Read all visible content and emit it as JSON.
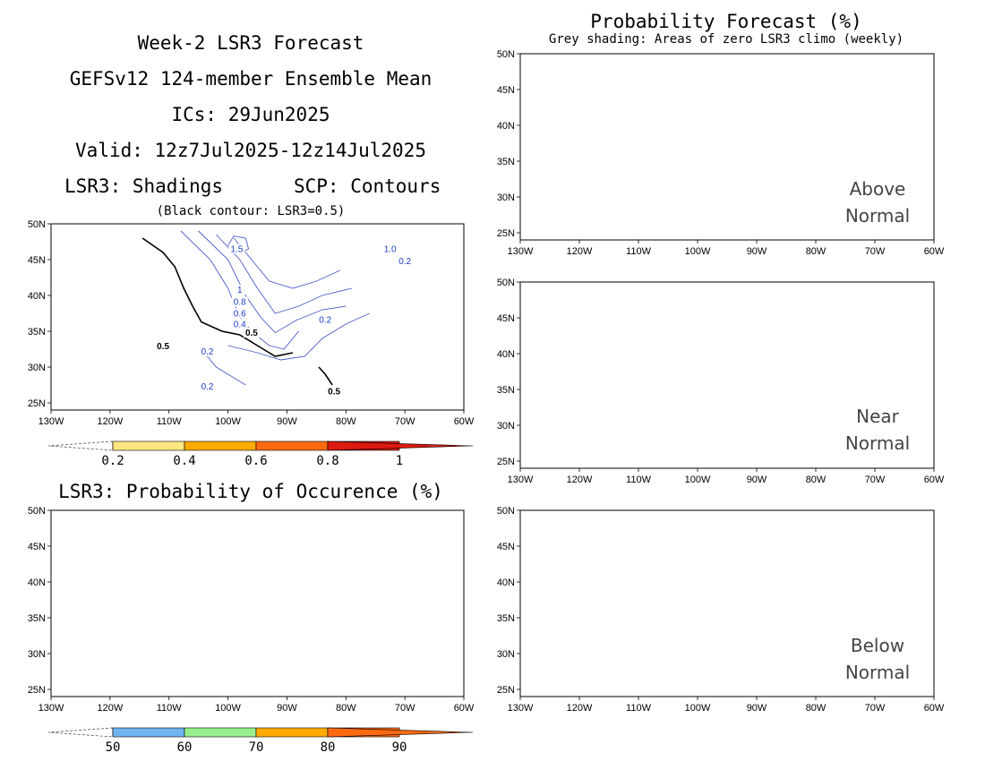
{
  "left": {
    "title_lines": [
      "Week-2 LSR3 Forecast",
      "GEFSv12 124-member Ensemble Mean",
      "ICs: 29Jun2025",
      "Valid: 12z7Jul2025-12z14Jul2025"
    ],
    "shading_label": "LSR3: Shadings",
    "contour_label": "SCP: Contours",
    "black_contour_note": "(Black contour: LSR3=0.5)",
    "occurrence_title": "LSR3: Probability of Occurence (%)",
    "colorbar1_ticks": [
      "0.2",
      "0.4",
      "0.6",
      "0.8",
      "1"
    ],
    "colorbar2_ticks": [
      "50",
      "60",
      "70",
      "80",
      "90"
    ],
    "contour_labels": [
      "1.5",
      "1",
      "0.8",
      "0.6",
      "0.4",
      "0.5",
      "0.2",
      "0.2",
      "0.2",
      "0.5",
      "0.5",
      "0.2",
      "1.0"
    ]
  },
  "right": {
    "title": "Probability Forecast (%)",
    "subtitle": "Grey shading: Areas of zero LSR3 climo (weekly)",
    "panels": [
      {
        "line1": "Above",
        "line2": "Normal"
      },
      {
        "line1": "Near",
        "line2": "Normal"
      },
      {
        "line1": "Below",
        "line2": "Normal"
      }
    ]
  },
  "axes": {
    "lon_labels": [
      "130W",
      "120W",
      "110W",
      "100W",
      "90W",
      "80W",
      "70W",
      "60W"
    ],
    "lat_labels": [
      "50N",
      "45N",
      "40N",
      "35N",
      "30N",
      "25N"
    ]
  },
  "colors": {
    "lsr_02": "#ffe680",
    "lsr_04": "#ffaa00",
    "lsr_06": "#ff6a10",
    "lsr_08": "#dd1a10",
    "lsr_10": "#a50f0a",
    "occ_50": "#6eb4f0",
    "occ_60": "#98f08c",
    "occ_70": "#ffaa00",
    "occ_80": "#ff6a10",
    "occ_90": "#a50f0a",
    "above": "#e8251a",
    "grey": "#a8a8a8",
    "contour": "#4b5ac8"
  }
}
